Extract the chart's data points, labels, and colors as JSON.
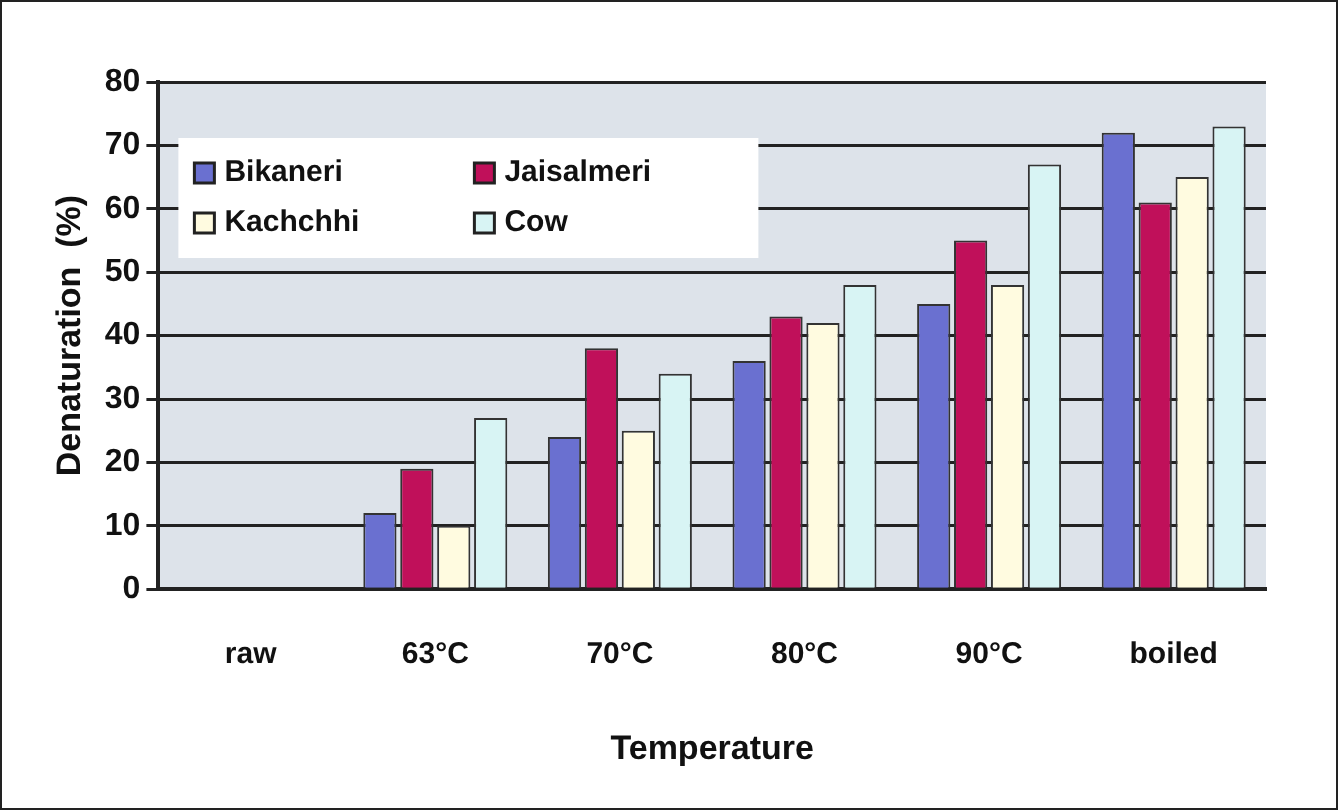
{
  "chart_data": {
    "type": "bar",
    "xlabel": "Temperature",
    "ylabel": "Denaturation  (%)",
    "categories": [
      "raw",
      "63°C",
      "70°C",
      "80°C",
      "90°C",
      "boiled"
    ],
    "series": [
      {
        "name": "Bikaneri",
        "color": "#6a70d0",
        "values": [
          0,
          12,
          24,
          36,
          45,
          72
        ]
      },
      {
        "name": "Jaisalmeri",
        "color": "#c0105a",
        "values": [
          0,
          19,
          38,
          43,
          55,
          61
        ]
      },
      {
        "name": "Kachchhi",
        "color": "#fffbe0",
        "values": [
          0,
          10,
          25,
          42,
          48,
          65
        ]
      },
      {
        "name": "Cow",
        "color": "#d8f4f4",
        "values": [
          0,
          27,
          34,
          48,
          67,
          73
        ]
      }
    ],
    "ylim": [
      0,
      80
    ],
    "yticks": [
      0,
      10,
      20,
      30,
      40,
      50,
      60,
      70,
      80
    ],
    "grid": "y",
    "legend": "top left"
  }
}
